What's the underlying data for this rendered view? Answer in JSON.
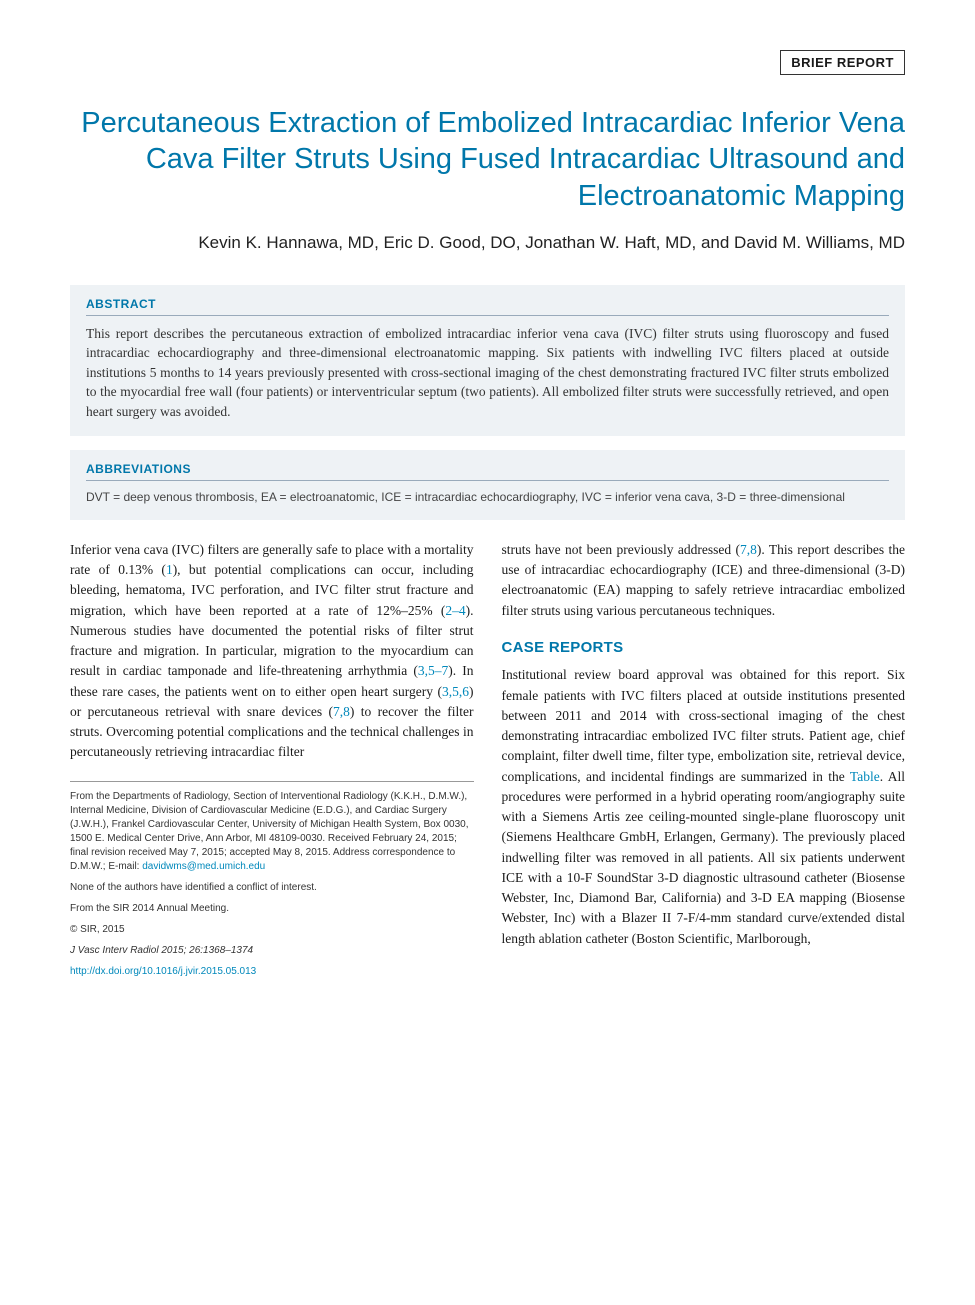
{
  "category": "BRIEF REPORT",
  "title": "Percutaneous Extraction of Embolized Intracardiac Inferior Vena Cava Filter Struts Using Fused Intracardiac Ultrasound and Electroanatomic Mapping",
  "authors": "Kevin K. Hannawa, MD, Eric D. Good, DO, Jonathan W. Haft, MD, and David M. Williams, MD",
  "abstract": {
    "header": "ABSTRACT",
    "body": "This report describes the percutaneous extraction of embolized intracardiac inferior vena cava (IVC) filter struts using fluoroscopy and fused intracardiac echocardiography and three-dimensional electroanatomic mapping. Six patients with indwelling IVC filters placed at outside institutions 5 months to 14 years previously presented with cross-sectional imaging of the chest demonstrating fractured IVC filter struts embolized to the myocardial free wall (four patients) or interventricular septum (two patients). All embolized filter struts were successfully retrieved, and open heart surgery was avoided."
  },
  "abbreviations": {
    "header": "ABBREVIATIONS",
    "body": "DVT = deep venous thrombosis, EA = electroanatomic, ICE = intracardiac echocardiography, IVC = inferior vena cava, 3-D = three-dimensional"
  },
  "body": {
    "col1_p1a": "Inferior vena cava (IVC) filters are generally safe to place with a mortality rate of 0.13% (",
    "col1_ref1": "1",
    "col1_p1b": "), but potential complications can occur, including bleeding, hematoma, IVC perforation, and IVC filter strut fracture and migration, which have been reported at a rate of 12%–25% (",
    "col1_ref2": "2–4",
    "col1_p1c": "). Numerous studies have documented the potential risks of filter strut fracture and migration. In particular, migration to the myocardium can result in cardiac tamponade and life-threatening arrhythmia (",
    "col1_ref3": "3,5–7",
    "col1_p1d": "). In these rare cases, the patients went on to either open heart surgery (",
    "col1_ref4": "3,5,6",
    "col1_p1e": ") or percutaneous retrieval with snare devices (",
    "col1_ref5": "7,8",
    "col1_p1f": ") to recover the filter struts. Overcoming potential complications and the technical challenges in percutaneously retrieving intracardiac filter",
    "col2_p1a": "struts have not been previously addressed (",
    "col2_ref1": "7,8",
    "col2_p1b": "). This report describes the use of intracardiac echocardiography (ICE) and three-dimensional (3-D) electroanatomic (EA) mapping to safely retrieve intracardiac embolized filter struts using various percutaneous techniques.",
    "case_header": "CASE REPORTS",
    "col2_p2a": "Institutional review board approval was obtained for this report. Six female patients with IVC filters placed at outside institutions presented between 2011 and 2014 with cross-sectional imaging of the chest demonstrating intracardiac embolized IVC filter struts. Patient age, chief complaint, filter dwell time, filter type, embolization site, retrieval device, complications, and incidental findings are summarized in the ",
    "col2_table": "Table",
    "col2_p2b": ". All procedures were performed in a hybrid operating room/angiography suite with a Siemens Artis zee ceiling-mounted single-plane fluoroscopy unit (Siemens Healthcare GmbH, Erlangen, Germany). The previously placed indwelling filter was removed in all patients. All six patients underwent ICE with a 10-F SoundStar 3-D diagnostic ultrasound catheter (Biosense Webster, Inc, Diamond Bar, California) and 3-D EA mapping (Biosense Webster, Inc) with a Blazer II 7-F/4-mm standard curve/extended distal length ablation catheter (Boston Scientific, Marlborough,"
  },
  "footnotes": {
    "affil": "From the Departments of Radiology, Section of Interventional Radiology (K.K.H., D.M.W.), Internal Medicine, Division of Cardiovascular Medicine (E.D.G.), and Cardiac Surgery (J.W.H.), Frankel Cardiovascular Center, University of Michigan Health System, Box 0030, 1500 E. Medical Center Drive, Ann Arbor, MI 48109-0030. Received February 24, 2015; final revision received May 7, 2015; accepted May 8, 2015. Address correspondence to D.M.W.; E-mail: ",
    "email": "davidwms@med.umich.edu",
    "conflict": "None of the authors have identified a conflict of interest.",
    "meeting": "From the SIR 2014 Annual Meeting.",
    "copyright": "© SIR, 2015",
    "citation": "J Vasc Interv Radiol 2015; 26:1368–1374",
    "doi": "http://dx.doi.org/10.1016/j.jvir.2015.05.013"
  },
  "colors": {
    "accent": "#0077aa",
    "link": "#0088bb",
    "panel_bg": "#eef2f5",
    "text": "#1a1a1a"
  },
  "typography": {
    "title_fontsize": 29,
    "authors_fontsize": 17,
    "body_fontsize": 13.5,
    "footnote_fontsize": 10
  }
}
